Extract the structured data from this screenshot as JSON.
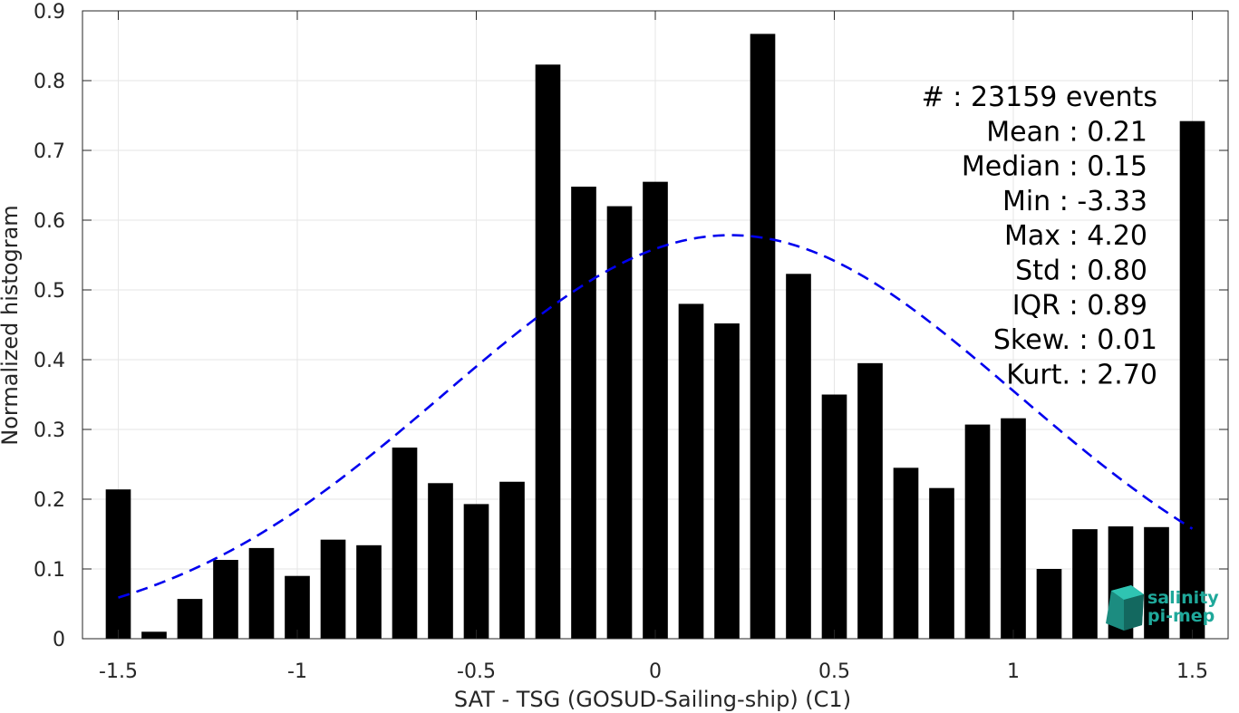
{
  "chart_data": {
    "type": "bar",
    "xlabel": "SAT - TSG (GOSUD-Sailing-ship) (C1)",
    "ylabel": "Normalized histogram",
    "xlim": [
      -1.6,
      1.6
    ],
    "ylim": [
      0,
      0.9
    ],
    "grid": true,
    "x_ticks": [
      -1.5,
      -1,
      -0.5,
      0,
      0.5,
      1,
      1.5
    ],
    "x_tick_labels": [
      "-1.5",
      "-1",
      "-0.5",
      "0",
      "0.5",
      "1",
      "1.5"
    ],
    "y_ticks": [
      0,
      0.1,
      0.2,
      0.3,
      0.4,
      0.5,
      0.6,
      0.7,
      0.8,
      0.9
    ],
    "y_tick_labels": [
      "0",
      "0.1",
      "0.2",
      "0.3",
      "0.4",
      "0.5",
      "0.6",
      "0.7",
      "0.8",
      "0.9"
    ],
    "bar_width": 0.07,
    "x": [
      -1.5,
      -1.4,
      -1.3,
      -1.2,
      -1.1,
      -1.0,
      -0.9,
      -0.8,
      -0.7,
      -0.6,
      -0.5,
      -0.4,
      -0.3,
      -0.2,
      -0.1,
      0.0,
      0.1,
      0.2,
      0.3,
      0.4,
      0.5,
      0.6,
      0.7,
      0.8,
      0.9,
      1.0,
      1.1,
      1.2,
      1.3,
      1.4,
      1.5
    ],
    "values": [
      0.214,
      0.01,
      0.057,
      0.113,
      0.13,
      0.09,
      0.142,
      0.134,
      0.274,
      0.223,
      0.193,
      0.225,
      0.823,
      0.648,
      0.62,
      0.655,
      0.48,
      0.452,
      0.867,
      0.523,
      0.35,
      0.395,
      0.245,
      0.216,
      0.307,
      0.316,
      0.1,
      0.157,
      0.161,
      0.16,
      0.742
    ],
    "bar_color": "#000000",
    "fit": {
      "type": "normal",
      "mean": 0.21,
      "std": 0.8,
      "x_range": [
        -1.5,
        1.5
      ],
      "color": "#0000ee",
      "style": "dashed"
    }
  },
  "stats": [
    "#  : 23159 events",
    "Mean : 0.21",
    "Median : 0.15",
    "Min : -3.33",
    "Max : 4.20",
    "Std : 0.80",
    "IQR : 0.89",
    "Skew. : 0.01",
    "Kurt. : 2.70"
  ],
  "logo": {
    "line1": "salinity",
    "line2": "pi-mep",
    "color": "#1fa89a"
  }
}
